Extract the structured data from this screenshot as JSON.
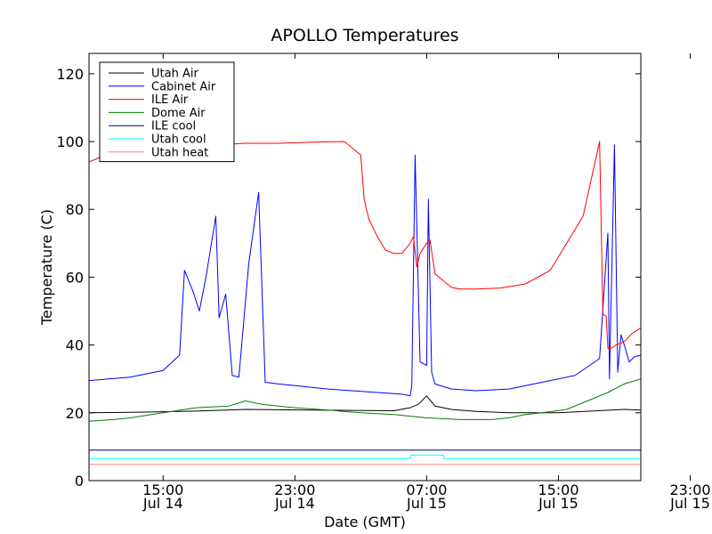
{
  "chart_data": {
    "type": "line",
    "title": "APOLLO Temperatures",
    "xlabel": "Date (GMT)",
    "ylabel": "Temperature (C)",
    "ylim": [
      0,
      126
    ],
    "xlim": [
      10.5,
      44.0
    ],
    "x_unit": "hours since Jul 14 00:00 GMT",
    "yticks": [
      0,
      20,
      40,
      60,
      80,
      100,
      120
    ],
    "xticks": [
      {
        "x": 15,
        "line1": "15:00",
        "line2": "Jul 14"
      },
      {
        "x": 23,
        "line1": "23:00",
        "line2": "Jul 14"
      },
      {
        "x": 31,
        "line1": "07:00",
        "line2": "Jul 15"
      },
      {
        "x": 39,
        "line1": "15:00",
        "line2": "Jul 15"
      },
      {
        "x": 47,
        "line1": "23:00",
        "line2": "Jul 15"
      }
    ],
    "legend_position": "top-left",
    "series": [
      {
        "name": "Utah Air",
        "color": "#000000",
        "x": [
          10.5,
          14,
          17,
          20,
          24,
          29,
          30,
          30.5,
          31,
          31.5,
          32.5,
          34,
          36,
          39,
          41,
          43,
          44
        ],
        "y": [
          20,
          20.2,
          20.5,
          21,
          20.8,
          20.6,
          21.5,
          22.5,
          25,
          22,
          21,
          20.4,
          20,
          20,
          20.5,
          21,
          20.8
        ]
      },
      {
        "name": "Cabinet Air",
        "color": "#0000ff",
        "x": [
          10.5,
          13,
          15,
          16,
          16.3,
          16.8,
          17.2,
          17.6,
          18.2,
          18.4,
          18.8,
          19.2,
          19.6,
          20.2,
          20.8,
          21.2,
          22,
          23,
          25,
          28,
          29.5,
          30,
          30.1,
          30.3,
          30.6,
          31,
          31.1,
          31.3,
          31.5,
          32.5,
          34,
          36,
          38,
          40,
          41.5,
          42,
          42.1,
          42.4,
          42.6,
          42.8,
          43,
          43.3,
          43.6,
          44.0
        ],
        "y": [
          29.5,
          30.5,
          32.5,
          37,
          62,
          56,
          50,
          60,
          78,
          48,
          55,
          31,
          30.5,
          64,
          85,
          29,
          28.5,
          28,
          27,
          26,
          25.5,
          25,
          28,
          96,
          35,
          34,
          83,
          32,
          28.5,
          27,
          26.5,
          27,
          29,
          31,
          36,
          73,
          30,
          99,
          32,
          43,
          40,
          35,
          36.5,
          37
        ]
      },
      {
        "name": "ILE Air",
        "color": "#ff0000",
        "x": [
          10.5,
          11,
          12,
          13,
          14,
          16,
          18,
          20,
          22,
          24,
          26,
          27,
          27.2,
          27.5,
          28,
          28.5,
          29,
          29.5,
          30,
          30.2,
          30.4,
          30.6,
          31,
          31.2,
          31.5,
          32,
          32.5,
          33,
          34,
          35.5,
          37,
          38.5,
          39.5,
          40.5,
          41.5,
          41.7,
          41.9,
          42,
          42.2,
          42.5,
          43,
          43.5,
          44.0
        ],
        "y": [
          94,
          95,
          97,
          99,
          99.5,
          99.5,
          99,
          99.5,
          99.5,
          99.8,
          100,
          96,
          83,
          77,
          72,
          68,
          67,
          67,
          70,
          72,
          63,
          67,
          70,
          71,
          61,
          59,
          57,
          56.5,
          56.5,
          56.8,
          58,
          62,
          70,
          78,
          100,
          49,
          48.5,
          39,
          39,
          40,
          41,
          43.5,
          45
        ]
      },
      {
        "name": "Dome Air",
        "color": "#008000",
        "x": [
          10.5,
          12,
          13,
          15,
          17,
          19,
          20,
          21,
          22,
          23,
          25,
          27,
          29,
          31,
          33,
          35,
          36,
          37,
          38,
          39.5,
          41,
          42,
          43,
          44.0
        ],
        "y": [
          17.5,
          18,
          18.5,
          20,
          21.5,
          22,
          23.5,
          22.5,
          22,
          21.5,
          20.8,
          20,
          19.5,
          18.5,
          18,
          18,
          18.5,
          19.5,
          20,
          21,
          24,
          26,
          28.5,
          30
        ]
      },
      {
        "name": "ILE cool",
        "color": "#000080",
        "x": [
          10.5,
          44.0
        ],
        "y": [
          9,
          9
        ]
      },
      {
        "name": "Utah cool",
        "color": "#00ffff",
        "x": [
          10.5,
          30,
          30.05,
          32,
          32.05,
          44.0
        ],
        "y": [
          6.5,
          6.5,
          7.5,
          7.5,
          6.5,
          6.5
        ]
      },
      {
        "name": "Utah heat",
        "color": "#ff8080",
        "x": [
          10.5,
          44.0
        ],
        "y": [
          4.8,
          4.8
        ]
      }
    ]
  }
}
